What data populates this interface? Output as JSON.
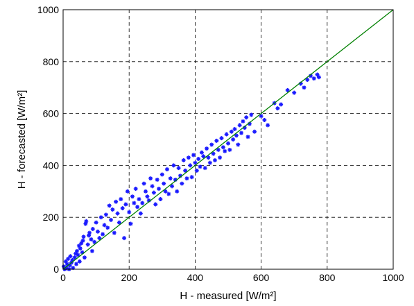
{
  "chart_data": {
    "type": "scatter",
    "xlabel": "H - measured [W/m²]",
    "ylabel": "H - forecasted [W/m²]",
    "xlim": [
      0,
      1000
    ],
    "ylim": [
      0,
      1000
    ],
    "xticks": [
      0,
      200,
      400,
      600,
      800,
      1000
    ],
    "yticks": [
      0,
      200,
      400,
      600,
      800,
      1000
    ],
    "grid": true,
    "colors": {
      "points": "#0000ff",
      "reference_line": "#008000"
    },
    "reference_line": {
      "x": [
        0,
        1000
      ],
      "y": [
        0,
        1000
      ]
    },
    "series": [
      {
        "marker": "star",
        "points": [
          [
            2,
            10
          ],
          [
            5,
            0
          ],
          [
            8,
            30
          ],
          [
            10,
            5
          ],
          [
            12,
            20
          ],
          [
            15,
            40
          ],
          [
            18,
            0
          ],
          [
            20,
            15
          ],
          [
            22,
            50
          ],
          [
            25,
            25
          ],
          [
            28,
            35
          ],
          [
            30,
            5
          ],
          [
            35,
            45
          ],
          [
            38,
            60
          ],
          [
            40,
            20
          ],
          [
            42,
            70
          ],
          [
            45,
            55
          ],
          [
            48,
            90
          ],
          [
            50,
            30
          ],
          [
            52,
            80
          ],
          [
            55,
            100
          ],
          [
            58,
            65
          ],
          [
            60,
            110
          ],
          [
            62,
            125
          ],
          [
            65,
            45
          ],
          [
            68,
            175
          ],
          [
            70,
            185
          ],
          [
            75,
            95
          ],
          [
            78,
            130
          ],
          [
            80,
            140
          ],
          [
            85,
            115
          ],
          [
            88,
            70
          ],
          [
            90,
            155
          ],
          [
            95,
            105
          ],
          [
            100,
            180
          ],
          [
            105,
            145
          ],
          [
            110,
            120
          ],
          [
            115,
            200
          ],
          [
            120,
            135
          ],
          [
            125,
            170
          ],
          [
            130,
            210
          ],
          [
            135,
            160
          ],
          [
            140,
            245
          ],
          [
            145,
            190
          ],
          [
            150,
            230
          ],
          [
            155,
            140
          ],
          [
            160,
            260
          ],
          [
            165,
            215
          ],
          [
            170,
            180
          ],
          [
            175,
            270
          ],
          [
            180,
            235
          ],
          [
            185,
            120
          ],
          [
            190,
            250
          ],
          [
            195,
            300
          ],
          [
            200,
            220
          ],
          [
            205,
            175
          ],
          [
            210,
            280
          ],
          [
            215,
            255
          ],
          [
            220,
            310
          ],
          [
            225,
            240
          ],
          [
            230,
            270
          ],
          [
            235,
            215
          ],
          [
            240,
            255
          ],
          [
            245,
            330
          ],
          [
            250,
            300
          ],
          [
            255,
            280
          ],
          [
            260,
            265
          ],
          [
            265,
            350
          ],
          [
            270,
            320
          ],
          [
            275,
            295
          ],
          [
            280,
            250
          ],
          [
            285,
            345
          ],
          [
            290,
            310
          ],
          [
            295,
            270
          ],
          [
            300,
            365
          ],
          [
            305,
            330
          ],
          [
            310,
            300
          ],
          [
            315,
            385
          ],
          [
            320,
            290
          ],
          [
            325,
            350
          ],
          [
            330,
            320
          ],
          [
            335,
            400
          ],
          [
            340,
            345
          ],
          [
            345,
            300
          ],
          [
            350,
            390
          ],
          [
            355,
            360
          ],
          [
            360,
            330
          ],
          [
            365,
            420
          ],
          [
            370,
            380
          ],
          [
            375,
            350
          ],
          [
            380,
            430
          ],
          [
            385,
            400
          ],
          [
            390,
            355
          ],
          [
            395,
            440
          ],
          [
            400,
            410
          ],
          [
            405,
            380
          ],
          [
            410,
            425
          ],
          [
            415,
            395
          ],
          [
            420,
            450
          ],
          [
            425,
            435
          ],
          [
            430,
            390
          ],
          [
            435,
            465
          ],
          [
            440,
            430
          ],
          [
            445,
            410
          ],
          [
            450,
            480
          ],
          [
            455,
            445
          ],
          [
            460,
            420
          ],
          [
            465,
            495
          ],
          [
            470,
            460
          ],
          [
            475,
            430
          ],
          [
            480,
            505
          ],
          [
            485,
            470
          ],
          [
            490,
            455
          ],
          [
            495,
            520
          ],
          [
            500,
            485
          ],
          [
            505,
            460
          ],
          [
            510,
            530
          ],
          [
            515,
            500
          ],
          [
            520,
            540
          ],
          [
            525,
            515
          ],
          [
            530,
            480
          ],
          [
            535,
            555
          ],
          [
            540,
            525
          ],
          [
            545,
            570
          ],
          [
            550,
            545
          ],
          [
            555,
            585
          ],
          [
            560,
            510
          ],
          [
            565,
            560
          ],
          [
            570,
            595
          ],
          [
            580,
            530
          ],
          [
            600,
            590
          ],
          [
            610,
            575
          ],
          [
            620,
            555
          ],
          [
            640,
            640
          ],
          [
            650,
            620
          ],
          [
            660,
            635
          ],
          [
            680,
            690
          ],
          [
            700,
            680
          ],
          [
            720,
            715
          ],
          [
            730,
            700
          ],
          [
            740,
            730
          ],
          [
            750,
            745
          ],
          [
            760,
            735
          ],
          [
            770,
            750
          ],
          [
            775,
            740
          ]
        ]
      }
    ]
  }
}
